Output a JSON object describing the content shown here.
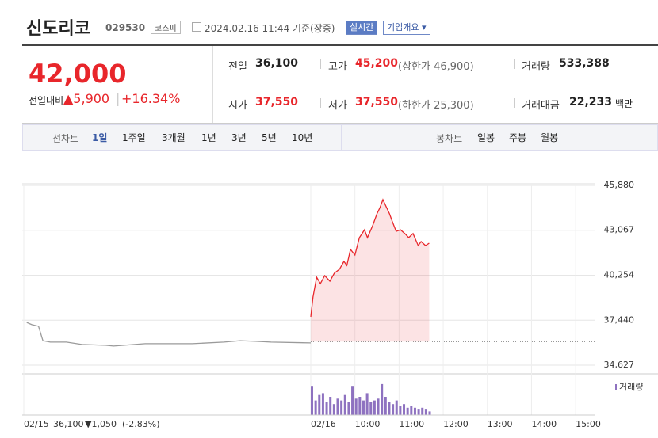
{
  "header": {
    "name": "신도리코",
    "code": "029530",
    "market": "코스피",
    "timestamp": "2024.02.16 11:44 기준(장중)",
    "realtime": "실시간",
    "company_info": "기업개요"
  },
  "quote": {
    "price": "42,000",
    "change_label": "전일대비",
    "change": "▲5,900",
    "change_rate": "+16.34%"
  },
  "info": [
    {
      "label": "전일",
      "value": "36,100"
    },
    {
      "label": "고가",
      "value": "45,200",
      "note": "(상한가 46,900)"
    },
    {
      "label": "거래량",
      "value": "533,388"
    },
    {
      "label": "시가",
      "value": "37,550"
    },
    {
      "label": "저가",
      "value": "37,550",
      "note": "(하한가 25,300)"
    },
    {
      "label": "거래대금",
      "value": "22,233",
      "unit": "백만"
    }
  ],
  "tabs": {
    "line_label": "선차트",
    "line": [
      "1일",
      "1주일",
      "3개월",
      "1년",
      "3년",
      "5년",
      "10년"
    ],
    "candle_label": "봉차트",
    "candle": [
      "일봉",
      "주봉",
      "월봉"
    ]
  },
  "chart_data": {
    "type": "line",
    "xlim": [
      -390,
      390
    ],
    "xticks": [
      {
        "value": -390,
        "label": "02/15"
      },
      {
        "value": 0,
        "label": "02/16"
      },
      {
        "value": 60,
        "label": "10:00"
      },
      {
        "value": 120,
        "label": "11:00"
      },
      {
        "value": 180,
        "label": "12:00"
      },
      {
        "value": 240,
        "label": "13:00"
      },
      {
        "value": 300,
        "label": "14:00"
      },
      {
        "value": 360,
        "label": "15:00"
      }
    ],
    "ylim": [
      34627,
      45880
    ],
    "yticks": [
      {
        "value": 45880,
        "label": "45,880"
      },
      {
        "value": 43067,
        "label": "43,067"
      },
      {
        "value": 40254,
        "label": "40,254"
      },
      {
        "value": 37440,
        "label": "37,440"
      },
      {
        "value": 34627,
        "label": "34,627"
      }
    ],
    "grid": true,
    "reference": {
      "value": 36100,
      "label": "36,100",
      "change": "▼1,050",
      "rate": "(-2.83%)"
    },
    "series": [
      {
        "color": "#9a9a9a",
        "fill": false,
        "x": [
          -386,
          -379,
          -370,
          -364,
          -354,
          -332,
          -311,
          -279,
          -268,
          -225,
          -161,
          -118,
          -96,
          -75,
          -54,
          0
        ],
        "values": [
          37300,
          37160,
          37060,
          36160,
          36070,
          36070,
          35920,
          35870,
          35820,
          35970,
          35970,
          36070,
          36160,
          36120,
          36070,
          36020
        ]
      },
      {
        "color": "#e8262b",
        "fill": true,
        "x": [
          0,
          3,
          8,
          13,
          19,
          26,
          32,
          39,
          45,
          49,
          54,
          60,
          66,
          73,
          77,
          84,
          90,
          94,
          98,
          103,
          107,
          111,
          116,
          122,
          129,
          133,
          139,
          146,
          150,
          156,
          161
        ],
        "values": [
          37650,
          38890,
          40130,
          39730,
          40230,
          39880,
          40380,
          40630,
          41120,
          40870,
          41870,
          41520,
          42610,
          43100,
          42610,
          43350,
          44100,
          44490,
          44990,
          44490,
          44100,
          43600,
          43000,
          43100,
          42810,
          42610,
          42860,
          42110,
          42360,
          42110,
          42260
        ]
      }
    ],
    "volume": {
      "label": "거래량",
      "color": "#8e72c0",
      "ylim": [
        0,
        100
      ],
      "x": [
        0,
        5,
        10,
        15,
        20,
        25,
        30,
        35,
        40,
        45,
        50,
        55,
        60,
        65,
        70,
        75,
        80,
        85,
        90,
        95,
        100,
        105,
        110,
        115,
        120,
        125,
        130,
        135,
        140,
        145,
        150,
        155,
        160
      ],
      "values": [
        80,
        40,
        55,
        60,
        35,
        50,
        30,
        45,
        40,
        55,
        35,
        80,
        45,
        50,
        40,
        60,
        35,
        40,
        45,
        85,
        50,
        35,
        30,
        40,
        25,
        30,
        20,
        25,
        20,
        15,
        20,
        15,
        10
      ]
    }
  }
}
